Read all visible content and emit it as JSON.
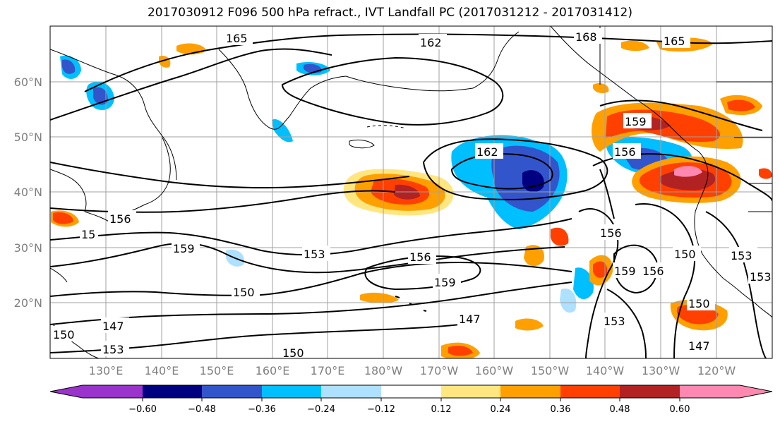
{
  "title": "2017030912 F096 500 hPa refract., IVT Landfall PC (2017031212 - 2017031412)",
  "map": {
    "lat_labels": [
      "60°N",
      "50°N",
      "40°N",
      "30°N",
      "20°N"
    ],
    "lon_labels": [
      "130°E",
      "140°E",
      "150°E",
      "160°E",
      "170°E",
      "180°W",
      "170°W",
      "160°W",
      "150°W",
      "140°W",
      "130°W",
      "120°W"
    ],
    "contour_labels": [
      "165",
      "162",
      "168",
      "165",
      "162",
      "159",
      "156",
      "156",
      "15",
      "159",
      "153",
      "156",
      "159",
      "150",
      "156",
      "159",
      "156",
      "150",
      "153",
      "153",
      "147",
      "153",
      "150",
      "147",
      "150",
      "147",
      "150",
      "153"
    ],
    "colors": {
      "coast": "#000000",
      "grid": "#a0a0a0",
      "contour": "#000000"
    }
  },
  "colorbar": {
    "ticks": [
      "−0.60",
      "−0.48",
      "−0.36",
      "−0.24",
      "−0.12",
      "0.12",
      "0.24",
      "0.36",
      "0.48",
      "0.60"
    ],
    "bins": [
      "#9933cc",
      "#000080",
      "#3355cc",
      "#00bfff",
      "#aee0ff",
      "#ffffff",
      "#ffe680",
      "#ffa000",
      "#ff4000",
      "#b22222",
      "#ff88b0"
    ]
  }
}
